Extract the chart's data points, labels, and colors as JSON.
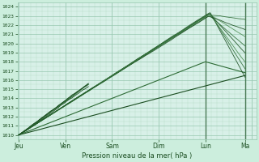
{
  "xlabel": "Pression niveau de la mer( hPa )",
  "ylim": [
    1009.5,
    1024.5
  ],
  "yticks": [
    1010,
    1011,
    1012,
    1013,
    1014,
    1015,
    1016,
    1017,
    1018,
    1019,
    1020,
    1021,
    1022,
    1023,
    1024
  ],
  "xtick_labels": [
    "Jeu",
    "Ven",
    "Sam",
    "Dim",
    "Lun",
    "Ma"
  ],
  "xtick_positions": [
    0,
    1,
    2,
    3,
    4,
    4.85
  ],
  "xlim": [
    -0.02,
    5.1
  ],
  "background_color": "#cceedd",
  "plot_bg_color": "#d8f0e8",
  "grid_color_minor": "#b8ddc8",
  "grid_color_major": "#98c8b0",
  "line_dark": "#1a4d20",
  "line_mid": "#2d6b35",
  "line_light": "#4a8a50",
  "lun_vline_x": 4.0,
  "ma_vline_x": 4.85,
  "n_days": 5,
  "subgrid_per_day": 8,
  "subgrid_per_hpa": 2
}
